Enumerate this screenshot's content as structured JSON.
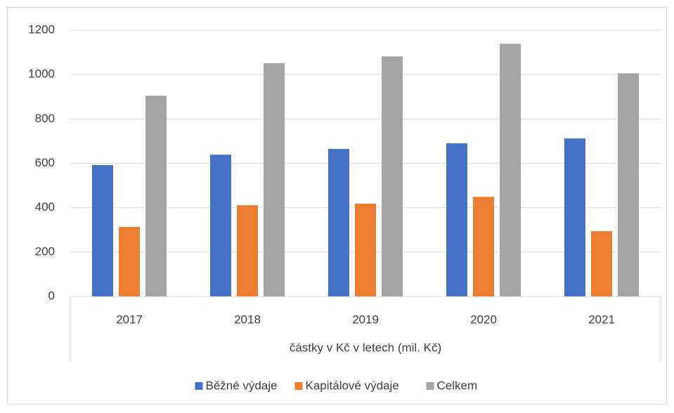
{
  "chart_data": {
    "type": "bar",
    "x_label": "částky v Kč v letech (mil. Kč)",
    "categories": [
      "2017",
      "2018",
      "2019",
      "2020",
      "2021"
    ],
    "series": [
      {
        "name": "Běžné výdaje",
        "color": "#4472c4",
        "values": [
          592,
          639,
          665,
          690,
          712
        ]
      },
      {
        "name": "Kapitálové výdaje",
        "color": "#ed7d31",
        "values": [
          313,
          411,
          418,
          449,
          294
        ]
      },
      {
        "name": "Celkem",
        "color": "#a5a5a5",
        "values": [
          905,
          1051,
          1082,
          1139,
          1006
        ]
      }
    ],
    "ylim": [
      0,
      1200
    ],
    "yticks": [
      0,
      200,
      400,
      600,
      800,
      1000,
      1200
    ],
    "grid": true,
    "legend": "bottom"
  }
}
